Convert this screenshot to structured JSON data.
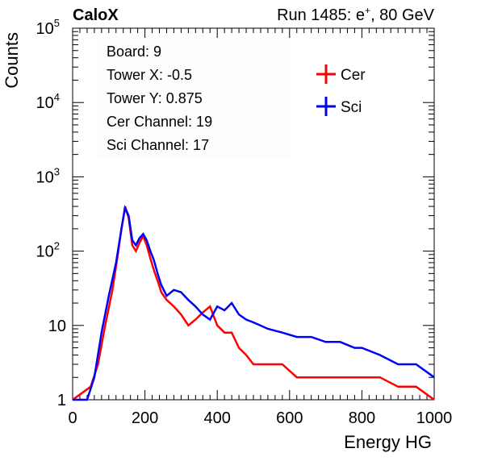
{
  "header": {
    "left": "CaloX",
    "right_prefix": "Run 1485: e",
    "right_sup": "+",
    "right_suffix": ", 80 GeV"
  },
  "info_box": {
    "lines": [
      "Board: 9",
      "Tower X: -0.5",
      "Tower Y: 0.875",
      "Cer Channel: 19",
      "Sci Channel: 17"
    ]
  },
  "chart_data": {
    "type": "line",
    "xlabel": "Energy HG",
    "ylabel": "Counts",
    "xlim": [
      0,
      1000
    ],
    "ylim": [
      1,
      100000
    ],
    "yscale": "log",
    "grid": false,
    "legend_position": "top-right",
    "x_ticks": [
      "0",
      "200",
      "400",
      "600",
      "800",
      "1000"
    ],
    "y_ticks": [
      {
        "value": 1,
        "base": "1",
        "exp": ""
      },
      {
        "value": 10,
        "base": "10",
        "exp": ""
      },
      {
        "value": 100,
        "base": "10",
        "exp": "2"
      },
      {
        "value": 1000,
        "base": "10",
        "exp": "3"
      },
      {
        "value": 10000,
        "base": "10",
        "exp": "4"
      },
      {
        "value": 100000,
        "base": "10",
        "exp": "5"
      }
    ],
    "series": [
      {
        "name": "Cer",
        "color": "#ff0000",
        "x": [
          0,
          50,
          70,
          90,
          110,
          125,
          135,
          145,
          155,
          165,
          175,
          185,
          195,
          205,
          215,
          225,
          235,
          245,
          260,
          280,
          300,
          320,
          340,
          360,
          380,
          400,
          420,
          440,
          460,
          480,
          500,
          540,
          580,
          620,
          660,
          700,
          740,
          780,
          800,
          850,
          900,
          950,
          1000
        ],
        "y": [
          1,
          1.5,
          3,
          10,
          30,
          90,
          200,
          400,
          280,
          120,
          100,
          130,
          160,
          120,
          80,
          55,
          40,
          28,
          22,
          18,
          14,
          10,
          12,
          15,
          18,
          10,
          8,
          8,
          5,
          4,
          3,
          3,
          3,
          2,
          2,
          2,
          2,
          2,
          2,
          2,
          1.5,
          1.5,
          1
        ]
      },
      {
        "name": "Sci",
        "color": "#0000ff",
        "x": [
          0,
          40,
          60,
          80,
          100,
          120,
          135,
          145,
          155,
          165,
          175,
          185,
          195,
          205,
          215,
          225,
          235,
          245,
          260,
          280,
          300,
          320,
          340,
          360,
          380,
          400,
          420,
          440,
          460,
          480,
          500,
          540,
          580,
          620,
          660,
          700,
          740,
          780,
          800,
          850,
          900,
          950,
          1000
        ],
        "y": [
          1,
          1,
          2,
          8,
          25,
          70,
          200,
          380,
          300,
          140,
          120,
          150,
          170,
          140,
          100,
          75,
          50,
          35,
          25,
          30,
          28,
          22,
          18,
          14,
          12,
          18,
          16,
          20,
          14,
          12,
          11,
          9,
          8,
          7,
          7,
          6,
          6,
          5,
          5,
          4,
          3,
          3,
          2
        ]
      }
    ]
  }
}
